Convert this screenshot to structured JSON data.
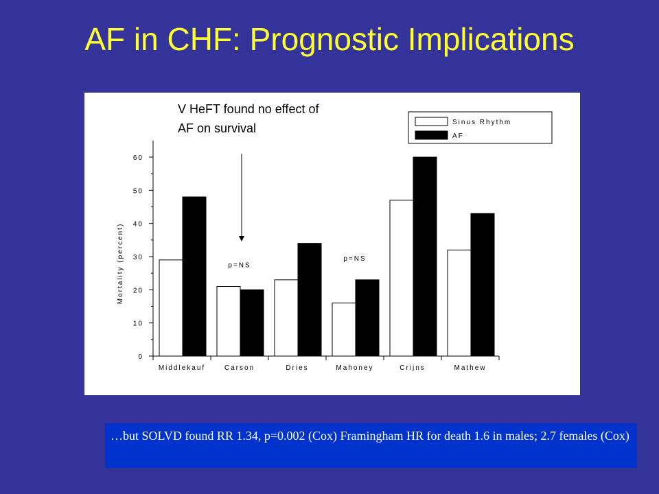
{
  "slide": {
    "title": "AF in CHF: Prognostic Implications",
    "background_color": "#333399",
    "title_color": "#ffff33"
  },
  "annotation": {
    "line1": "V HeFT found no effect of",
    "line2": "AF on survival"
  },
  "note": {
    "text": "…but SOLVD found RR 1.34, p=0.002 (Cox) Framingham HR for death 1.6 in males; 2.7 females (Cox)",
    "background_color": "#0033cc"
  },
  "chart_data": {
    "type": "bar",
    "title": "",
    "xlabel": "",
    "ylabel": "Mortality (percent)",
    "categories": [
      "Middlekauf",
      "Carson",
      "Dries",
      "Mahoney",
      "Crijns",
      "Mathew"
    ],
    "series": [
      {
        "name": "Sinus Rhythm",
        "color": "#ffffff",
        "values": [
          29,
          21,
          23,
          16,
          47,
          32
        ]
      },
      {
        "name": "AF",
        "color": "#000000",
        "values": [
          48,
          20,
          34,
          23,
          60,
          43
        ]
      }
    ],
    "ylim": [
      0,
      60
    ],
    "yticks": [
      "0",
      "10",
      "20",
      "30",
      "40",
      "50",
      "60"
    ],
    "legend_position": "top-right",
    "grid": false,
    "annotations": [
      {
        "category": "Carson",
        "text": "p=NS"
      },
      {
        "category": "Mahoney",
        "text": "p=NS"
      }
    ]
  }
}
